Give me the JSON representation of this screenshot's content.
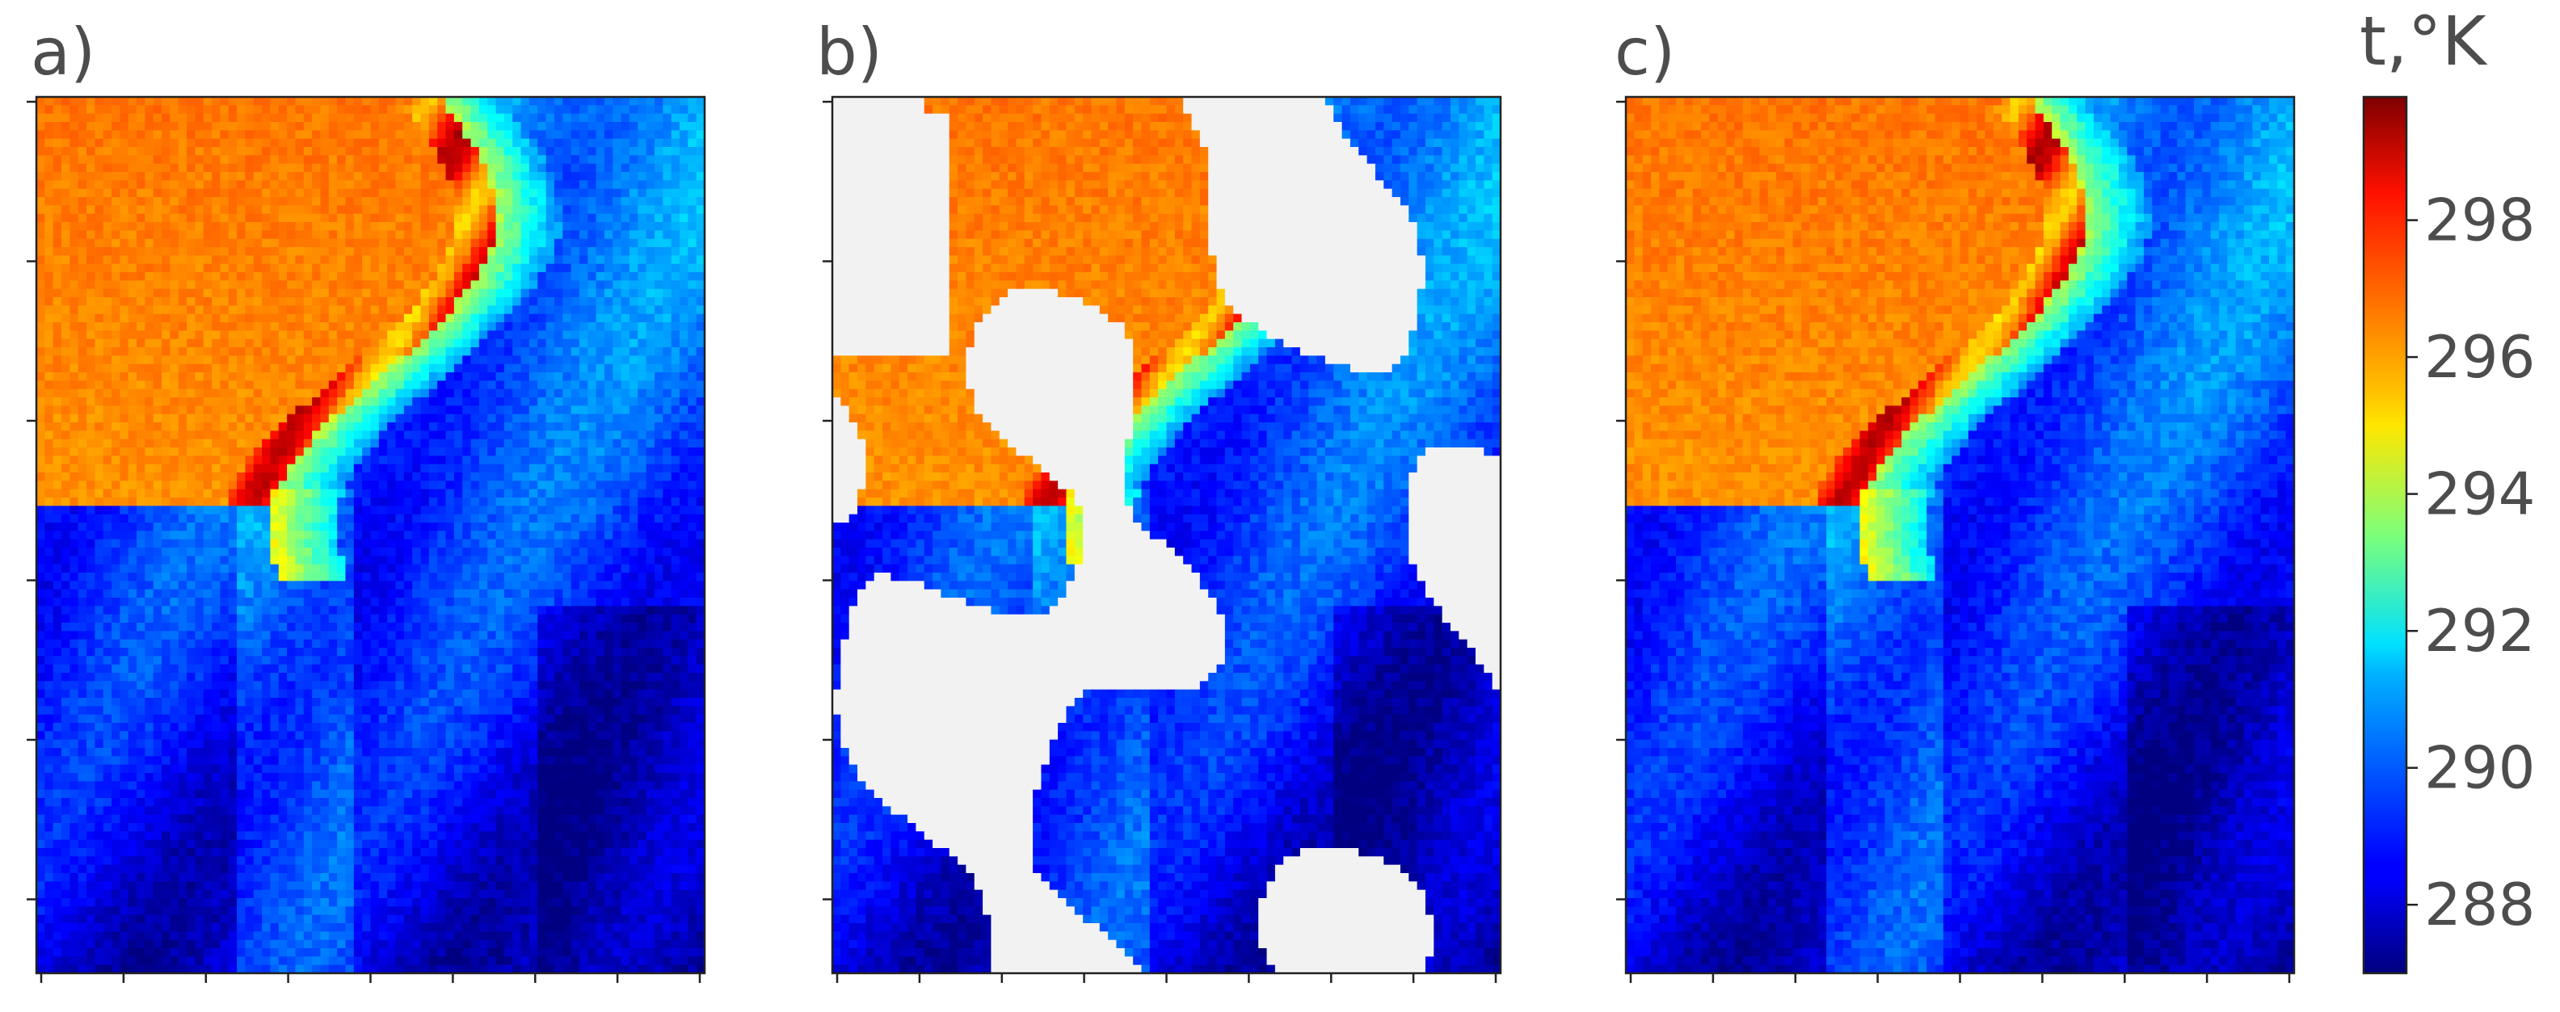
{
  "chart_data": [
    {
      "type": "heatmap",
      "panel_label": "a)",
      "content": "sea surface temperature field, complete",
      "grid_cols": 80,
      "grid_rows": 105,
      "x_ticks": 9,
      "y_ticks": 6,
      "mask": false
    },
    {
      "type": "heatmap",
      "panel_label": "b)",
      "content": "sea surface temperature field with cloud-masked gaps",
      "grid_cols": 80,
      "grid_rows": 105,
      "x_ticks": 9,
      "y_ticks": 6,
      "mask": true,
      "mask_color": "#f2f2f2"
    },
    {
      "type": "heatmap",
      "panel_label": "c)",
      "content": "sea surface temperature field, reconstructed",
      "grid_cols": 80,
      "grid_rows": 105,
      "x_ticks": 9,
      "y_ticks": 6,
      "mask": false
    }
  ],
  "colorbar": {
    "title": "t,°K",
    "colormap": "jet",
    "vmin": 287,
    "vmax": 299.8,
    "ticks": [
      288,
      290,
      292,
      294,
      296,
      298
    ],
    "tick_labels": [
      "288",
      "290",
      "292",
      "294",
      "296",
      "298"
    ]
  }
}
